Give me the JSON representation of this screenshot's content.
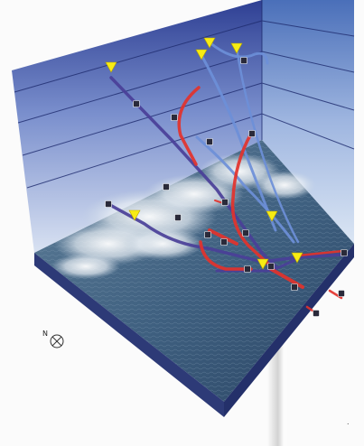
{
  "compass": {
    "label": "N",
    "icon": "compass-icon"
  },
  "colors": {
    "back_wall_top": "#2e3f93",
    "back_wall_bottom": "#cbd8ee",
    "sea": "#3e5f7f",
    "slab_front": "#2d3a77",
    "slab_side": "#24306a",
    "warm_current": "#e3322b",
    "cold_current": "#6d8fd8",
    "deep_current": "#4a3f98",
    "marker_fill": "#f7ec13"
  },
  "markers": [
    "",
    "",
    "",
    "",
    "",
    "",
    "",
    ""
  ],
  "flow_labels": [
    "",
    "",
    "",
    "",
    "",
    "",
    "",
    "",
    "",
    "",
    "",
    "",
    "",
    "",
    "",
    "",
    "",
    ""
  ],
  "page_mark": "."
}
